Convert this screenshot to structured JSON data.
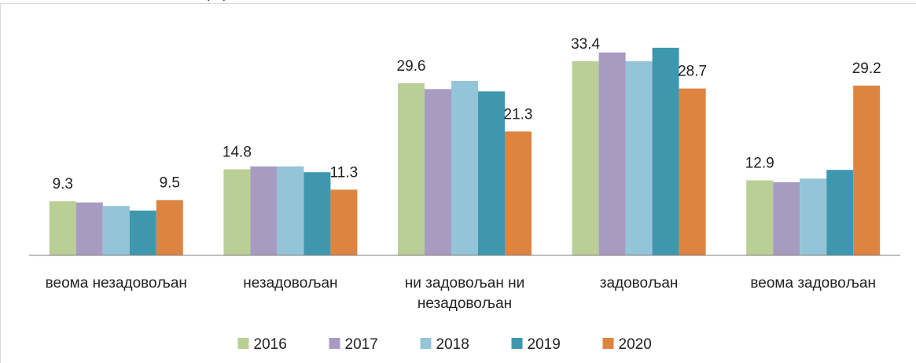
{
  "chart_data": {
    "type": "bar",
    "title": "(%)",
    "categories": [
      "веома незадовољан",
      "незадовољан",
      "ни задовољан ни незадовољан",
      "задовољан",
      "веома задовољан"
    ],
    "series": [
      {
        "name": "2016",
        "color": "#b9cf96",
        "values": [
          9.3,
          14.8,
          29.6,
          33.4,
          12.9
        ],
        "data_labels": true
      },
      {
        "name": "2017",
        "color": "#a89bc2",
        "values": [
          9.1,
          15.3,
          28.6,
          34.9,
          12.6
        ],
        "data_labels": false
      },
      {
        "name": "2018",
        "color": "#94c4d7",
        "values": [
          8.5,
          15.3,
          30.0,
          33.4,
          13.2
        ],
        "data_labels": false
      },
      {
        "name": "2019",
        "color": "#3f97ae",
        "values": [
          7.7,
          14.3,
          28.2,
          35.7,
          14.7
        ],
        "data_labels": false
      },
      {
        "name": "2020",
        "color": "#dd8440",
        "values": [
          9.5,
          11.3,
          21.3,
          28.7,
          29.2
        ],
        "data_labels": true
      }
    ],
    "legend": "bottom",
    "grid": false
  }
}
